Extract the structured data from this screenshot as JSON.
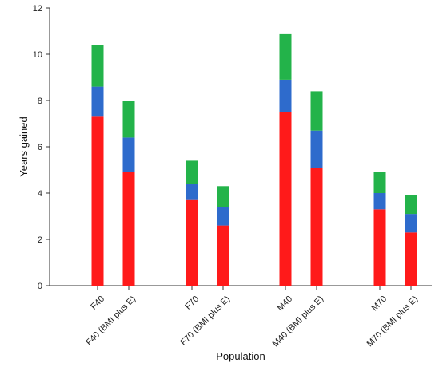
{
  "chart_data": {
    "type": "bar",
    "stacked": true,
    "xlabel": "Population",
    "ylabel": "Years gained",
    "ylim": [
      0,
      12
    ],
    "yticks": [
      0,
      2,
      4,
      6,
      8,
      10,
      12
    ],
    "grid": false,
    "legend": "none",
    "categories": [
      "F40",
      "F40 (BMI plus E)",
      "F70",
      "F70 (BMI plus E)",
      "M40",
      "M40 (BMI plus E)",
      "M70",
      "M70 (BMI plus E)"
    ],
    "series": [
      {
        "color": "#ff1a1a",
        "values": [
          7.3,
          4.9,
          3.7,
          2.6,
          7.5,
          5.1,
          3.3,
          2.3
        ]
      },
      {
        "color": "#2e6bcc",
        "values": [
          1.3,
          1.5,
          0.7,
          0.8,
          1.4,
          1.6,
          0.7,
          0.8
        ]
      },
      {
        "color": "#23b34a",
        "values": [
          1.8,
          1.6,
          1.0,
          0.9,
          2.0,
          1.7,
          0.9,
          0.8
        ]
      }
    ]
  }
}
